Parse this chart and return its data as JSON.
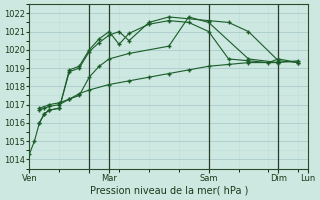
{
  "background_color": "#cce8e0",
  "grid_major_color": "#aacccc",
  "grid_minor_color": "#c0ddd8",
  "line_color": "#1a5c28",
  "marker_color": "#1a5c28",
  "title": "Pression niveau de la mer( hPa )",
  "ylim": [
    1013.5,
    1022.5
  ],
  "yticks": [
    1014,
    1015,
    1016,
    1017,
    1018,
    1019,
    1020,
    1021,
    1022
  ],
  "xlim": [
    0,
    56
  ],
  "vline_positions": [
    12,
    16,
    36,
    50
  ],
  "xtick_positions": [
    0,
    12,
    16,
    36,
    50,
    56
  ],
  "xtick_labels": [
    "Ven",
    "",
    "Mar",
    "Sam",
    "Dim",
    "Lun"
  ],
  "series_x": [
    [
      0,
      1,
      2,
      3,
      4,
      6,
      8,
      10,
      12,
      14,
      16,
      18,
      20,
      24,
      28,
      32,
      36,
      40,
      44,
      48,
      50,
      54
    ],
    [
      2,
      3,
      4,
      6,
      8,
      10,
      12,
      14,
      16,
      18,
      20,
      24,
      28,
      36,
      40,
      44,
      50,
      54
    ],
    [
      2,
      3,
      4,
      6,
      8,
      10,
      12,
      14,
      16,
      20,
      28,
      32,
      36,
      44,
      50
    ],
    [
      2,
      4,
      6,
      8,
      10,
      12,
      16,
      20,
      24,
      28,
      32,
      36,
      40,
      44,
      50,
      54
    ]
  ],
  "series_y": [
    [
      1014.3,
      1015.0,
      1016.0,
      1016.5,
      1016.7,
      1016.8,
      1018.9,
      1019.1,
      1020.0,
      1020.6,
      1021.0,
      1020.3,
      1020.9,
      1021.4,
      1021.6,
      1021.5,
      1021.0,
      1019.5,
      1019.4,
      1019.3,
      1019.5,
      1019.3
    ],
    [
      1016.0,
      1016.5,
      1016.7,
      1016.8,
      1018.8,
      1019.0,
      1019.9,
      1020.4,
      1020.8,
      1021.0,
      1020.5,
      1021.5,
      1021.8,
      1021.6,
      1021.5,
      1021.0,
      1019.4,
      1019.3
    ],
    [
      1016.7,
      1016.8,
      1016.9,
      1017.0,
      1017.3,
      1017.5,
      1018.5,
      1019.1,
      1019.5,
      1019.8,
      1020.2,
      1021.8,
      1021.5,
      1019.5,
      1019.3
    ],
    [
      1016.8,
      1017.0,
      1017.1,
      1017.3,
      1017.6,
      1017.8,
      1018.1,
      1018.3,
      1018.5,
      1018.7,
      1018.9,
      1019.1,
      1019.2,
      1019.3,
      1019.3,
      1019.4
    ]
  ]
}
